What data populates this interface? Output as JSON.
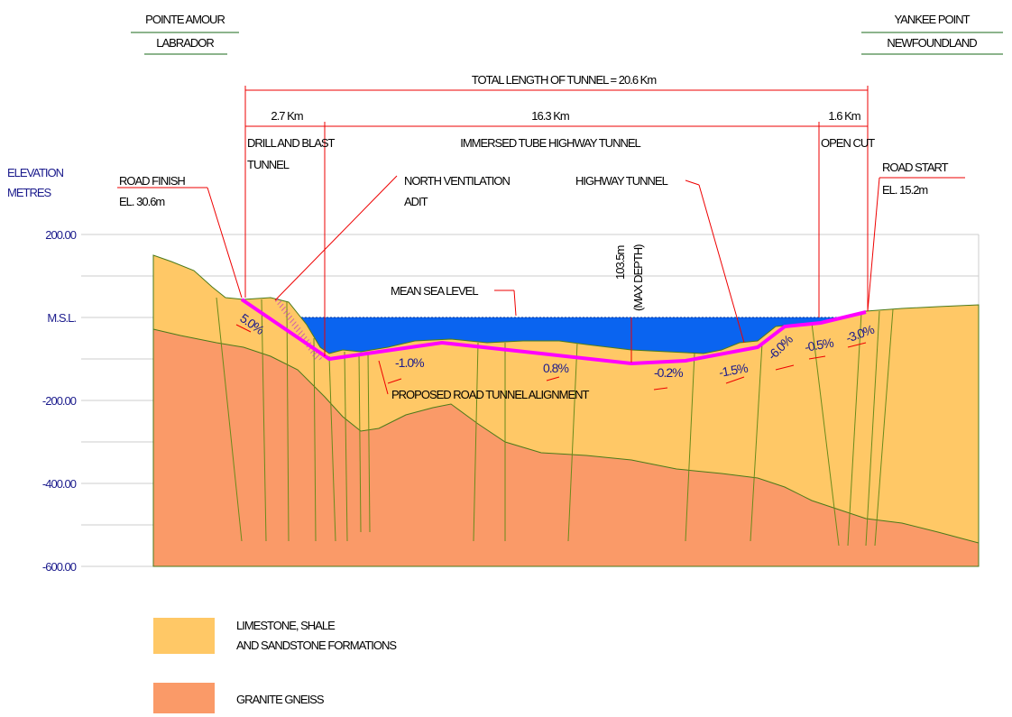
{
  "header": {
    "left": [
      "POINTE AMOUR",
      "LABRADOR"
    ],
    "right": [
      "YANKEE POINT",
      "NEWFOUNDLAND"
    ]
  },
  "dimensions": {
    "total": "TOTAL LENGTH OF TUNNEL = 20.6 Km",
    "sections": [
      {
        "length": "2.7 Km",
        "label": [
          "DRILL AND BLAST",
          "TUNNEL"
        ]
      },
      {
        "length": "16.3 Km",
        "label": [
          "IMMERSED TUBE HIGHWAY TUNNEL"
        ]
      },
      {
        "length": "1.6 Km",
        "label": [
          "OPEN CUT"
        ]
      }
    ]
  },
  "elevation_axis": {
    "title": [
      "ELEVATION",
      "METRES"
    ],
    "ticks": [
      "200.00",
      "M.S.L.",
      "-200.00",
      "-400.00",
      "-600.00"
    ]
  },
  "annotations": {
    "road_finish": [
      "ROAD FINISH",
      "EL. 30.6m"
    ],
    "ventilation": [
      "NORTH VENTILATION",
      "ADIT"
    ],
    "highway_tunnel": "HIGHWAY TUNNEL",
    "road_start": [
      "ROAD START",
      "EL. 15.2m"
    ],
    "max_depth": [
      "103.5m",
      "(MAX DEPTH)"
    ],
    "sea_level": "MEAN SEA LEVEL",
    "alignment": "PROPOSED ROAD TUNNEL ALIGNMENT"
  },
  "grades": [
    "5.0%",
    "-1.0%",
    "0.8%",
    "-0.2%",
    "-1.5%",
    "-6.0%",
    "-0.5%",
    "-3.0%"
  ],
  "legend": [
    {
      "label": [
        "LIMESTONE, SHALE",
        "AND SANDSTONE FORMATIONS"
      ]
    },
    {
      "label": [
        "GRANITE GNEISS"
      ]
    }
  ]
}
